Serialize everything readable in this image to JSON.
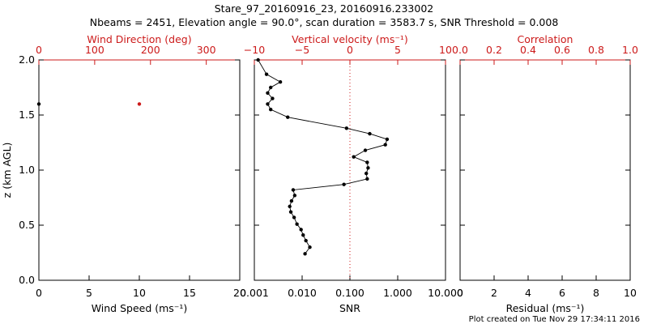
{
  "header": {
    "title": "Stare_97_20160916_23, 20160916.233002",
    "subtitle": "Nbeams = 2451, Elevation angle = 90.0°, scan duration = 3583.7 s, SNR Threshold = 0.008"
  },
  "colors": {
    "axis": "#000000",
    "accent": "#cc1a1a"
  },
  "footer": {
    "credit": "Plot created on Tue Nov 29 17:34:11 2016"
  },
  "chart_data": [
    {
      "type": "scatter",
      "panel": "wind",
      "xlabel": "Wind Speed (ms⁻¹)",
      "x2label": "Wind Direction (deg)",
      "ylabel": "z (km AGL)",
      "xlim": [
        0,
        20
      ],
      "x2lim": [
        0,
        360
      ],
      "ylim": [
        0,
        2
      ],
      "xticks": [
        "0",
        "5",
        "10",
        "15",
        "20"
      ],
      "x2ticks": [
        "0",
        "100",
        "200",
        "300"
      ],
      "yticks": [
        "0.0",
        "0.5",
        "1.0",
        "1.5",
        "2.0"
      ],
      "series": [
        {
          "axis": "bottom",
          "color": "#000000",
          "points": [
            [
              0,
              1.6
            ]
          ]
        },
        {
          "axis": "top",
          "color": "#cc1a1a",
          "points": [
            [
              180,
              1.6
            ]
          ]
        }
      ]
    },
    {
      "type": "line",
      "panel": "snr",
      "xlabel": "SNR",
      "x2label": "Vertical velocity (ms⁻¹)",
      "xscale": "log",
      "xlim": [
        0.001,
        10
      ],
      "x2lim": [
        -10,
        10
      ],
      "ylim": [
        0,
        2
      ],
      "xticks": [
        "0.001",
        "0.010",
        "0.100",
        "1.000",
        "10.000"
      ],
      "x2ticks": [
        "−10",
        "−5",
        "0",
        "5",
        "10"
      ],
      "reference_line": {
        "axis": "top",
        "value": 0,
        "style": "dotted",
        "color": "#cc1a1a"
      },
      "series": [
        {
          "axis": "bottom",
          "color": "#000000",
          "points": [
            [
              0.0012,
              2.0
            ],
            [
              0.0018,
              1.87
            ],
            [
              0.0035,
              1.8
            ],
            [
              0.0022,
              1.75
            ],
            [
              0.0019,
              1.7
            ],
            [
              0.0024,
              1.65
            ],
            [
              0.0019,
              1.6
            ],
            [
              0.0022,
              1.55
            ],
            [
              0.005,
              1.48
            ],
            [
              0.085,
              1.38
            ],
            [
              0.26,
              1.33
            ],
            [
              0.6,
              1.28
            ],
            [
              0.55,
              1.23
            ],
            [
              0.21,
              1.18
            ],
            [
              0.12,
              1.12
            ],
            [
              0.23,
              1.07
            ],
            [
              0.24,
              1.02
            ],
            [
              0.22,
              0.97
            ],
            [
              0.23,
              0.92
            ],
            [
              0.075,
              0.87
            ],
            [
              0.0065,
              0.82
            ],
            [
              0.007,
              0.77
            ],
            [
              0.006,
              0.72
            ],
            [
              0.0055,
              0.67
            ],
            [
              0.0058,
              0.62
            ],
            [
              0.0068,
              0.57
            ],
            [
              0.0078,
              0.51
            ],
            [
              0.0095,
              0.46
            ],
            [
              0.0105,
              0.41
            ],
            [
              0.012,
              0.36
            ],
            [
              0.0145,
              0.3
            ],
            [
              0.0115,
              0.24
            ]
          ]
        }
      ]
    },
    {
      "type": "scatter",
      "panel": "correlation",
      "xlabel": "Residual (ms⁻¹)",
      "x2label": "Correlation",
      "xlim": [
        0,
        10
      ],
      "x2lim": [
        0,
        1
      ],
      "ylim": [
        0,
        2
      ],
      "xticks": [
        "0",
        "2",
        "4",
        "6",
        "8",
        "10"
      ],
      "x2ticks": [
        "0.0",
        "0.2",
        "0.4",
        "0.6",
        "0.8",
        "1.0"
      ],
      "series": []
    }
  ]
}
